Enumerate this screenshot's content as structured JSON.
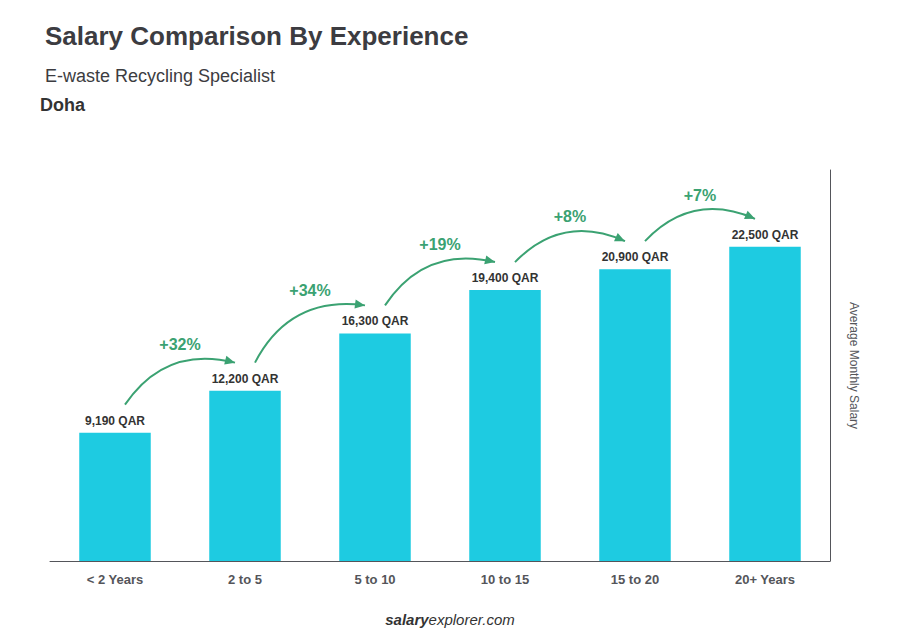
{
  "chart_data": {
    "type": "bar",
    "title": "Salary Comparison By Experience",
    "subtitle": "E-waste Recycling Specialist",
    "annotations": [
      "Doha"
    ],
    "watermark": [
      "salary",
      "explorer.com"
    ],
    "ylabel": "Average Monthly Salary",
    "categories": [
      "< 2 Years",
      "2 to 5",
      "5 to 10",
      "10 to 15",
      "15 to 20",
      "20+ Years"
    ],
    "values": [
      9190,
      12200,
      16300,
      19400,
      20900,
      22500
    ],
    "value_labels": [
      "9,190 QAR",
      "12,200 QAR",
      "16,300 QAR",
      "19,400 QAR",
      "20,900 QAR",
      "22,500 QAR"
    ],
    "data_labels": true,
    "change_labels": [
      "+32%",
      "+34%",
      "+19%",
      "+8%",
      "+7%"
    ],
    "color": "#1ecbe1",
    "ylim": [
      0,
      28000
    ],
    "grid": false,
    "tick_labels": "x"
  }
}
